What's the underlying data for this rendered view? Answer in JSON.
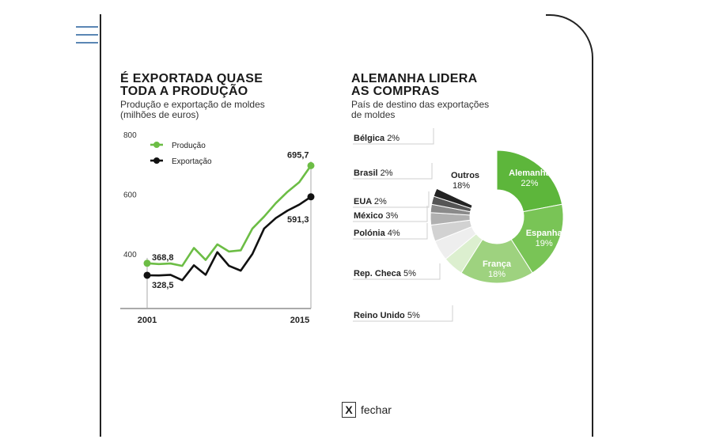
{
  "menu": {
    "icon": "hamburger-icon"
  },
  "left_chart": {
    "title_line1": "É EXPORTADA QUASE",
    "title_line2": "TODA A PRODUÇÃO",
    "subtitle_line1": "Produção e exportação de moldes",
    "subtitle_line2": "(milhões de euros)"
  },
  "right_chart": {
    "title_line1": "ALEMANHA LIDERA",
    "title_line2": "AS COMPRAS",
    "subtitle_line1": "País de destino das exportações",
    "subtitle_line2": "de moldes"
  },
  "close": {
    "icon_label": "X",
    "label": "fechar"
  },
  "colors": {
    "green": "#6cbd45",
    "black": "#111111"
  },
  "chart_data": [
    {
      "type": "line",
      "title": "É EXPORTADA QUASE TODA A PRODUÇÃO",
      "subtitle": "Produção e exportação de moldes (milhões de euros)",
      "y_ticks": [
        "800",
        "600",
        "400"
      ],
      "ylim": [
        340,
        800
      ],
      "x_tick_labels": [
        "2001",
        "2015"
      ],
      "x": [
        2001,
        2002,
        2003,
        2004,
        2005,
        2006,
        2007,
        2008,
        2009,
        2010,
        2011,
        2012,
        2013,
        2014,
        2015
      ],
      "series": [
        {
          "name": "Produção",
          "color": "#6cbd45",
          "values": [
            368.8,
            366,
            368,
            360,
            420,
            380,
            432,
            408,
            412,
            485,
            525,
            570,
            608,
            640,
            695.7
          ],
          "first_label": "368,8",
          "last_label": "695,7"
        },
        {
          "name": "Exportação",
          "color": "#111111",
          "values": [
            328.5,
            328,
            330,
            312,
            362,
            330,
            406,
            360,
            344,
            400,
            485,
            520,
            545,
            565,
            591.3
          ],
          "first_label": "328,5",
          "last_label": "591,3"
        }
      ],
      "legend_position": "top-left"
    },
    {
      "type": "pie",
      "title": "ALEMANHA LIDERA AS COMPRAS",
      "subtitle": "País de destino das exportações de moldes",
      "slices": [
        {
          "label": "Alemanha",
          "value": 22,
          "value_label": "22%",
          "color": "#5db63b",
          "labelled": "inside"
        },
        {
          "label": "Espanha",
          "value": 19,
          "value_label": "19%",
          "color": "#79c456",
          "labelled": "inside"
        },
        {
          "label": "França",
          "value": 18,
          "value_label": "18%",
          "color": "#9ed27f",
          "labelled": "inside"
        },
        {
          "label": "Reino Unido",
          "value": 5,
          "value_label": "5%",
          "color": "#dcefcf",
          "labelled": "callout"
        },
        {
          "label": "Rep. Checa",
          "value": 5,
          "value_label": "5%",
          "color": "#eeeeee",
          "labelled": "callout"
        },
        {
          "label": "Polónia",
          "value": 4,
          "value_label": "4%",
          "color": "#d2d2d2",
          "labelled": "callout"
        },
        {
          "label": "México",
          "value": 3,
          "value_label": "3%",
          "color": "#b0b0b0",
          "labelled": "callout"
        },
        {
          "label": "EUA",
          "value": 2,
          "value_label": "2%",
          "color": "#8a8a8a",
          "labelled": "callout"
        },
        {
          "label": "Brasil",
          "value": 2,
          "value_label": "2%",
          "color": "#555555",
          "labelled": "callout"
        },
        {
          "label": "Bélgica",
          "value": 2,
          "value_label": "2%",
          "color": "#222222",
          "labelled": "callout"
        },
        {
          "label": "Outros",
          "value": 18,
          "value_label": "18%",
          "color": "#ffffff",
          "labelled": "outside"
        }
      ]
    }
  ]
}
